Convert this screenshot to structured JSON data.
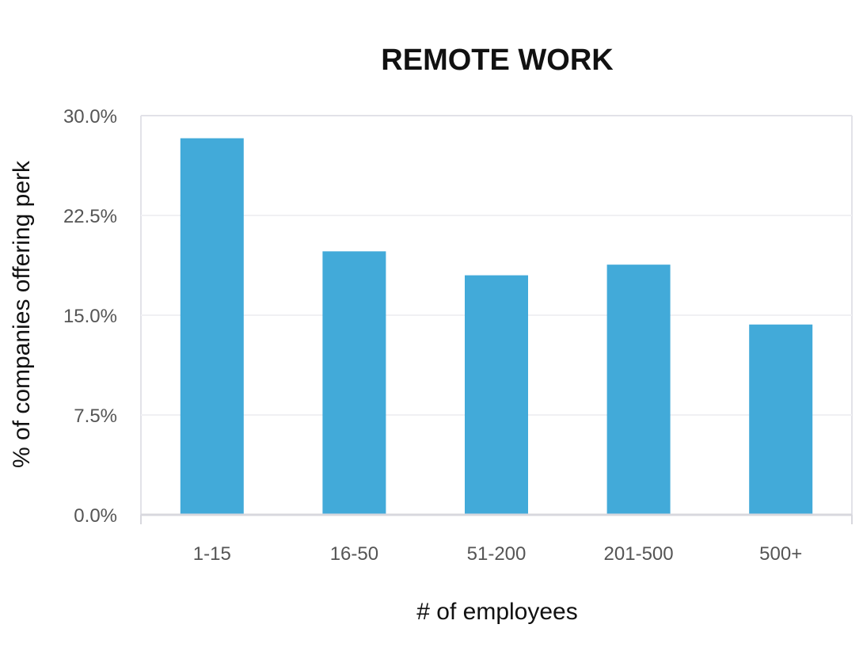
{
  "chart_data": {
    "type": "bar",
    "title": "REMOTE WORK",
    "xlabel": "# of employees",
    "ylabel": "% of companies offering perk",
    "categories": [
      "1-15",
      "16-50",
      "51-200",
      "201-500",
      "500+"
    ],
    "values": [
      28.3,
      19.8,
      18.0,
      18.8,
      14.3
    ],
    "ylim": [
      0,
      30
    ],
    "yticks": [
      0,
      7.5,
      15,
      22.5,
      30
    ],
    "ytick_labels": [
      "0.0%",
      "7.5%",
      "15.0%",
      "22.5%",
      "30.0%"
    ],
    "grid": true,
    "legend": "none",
    "bar_color": "#42aad9"
  }
}
